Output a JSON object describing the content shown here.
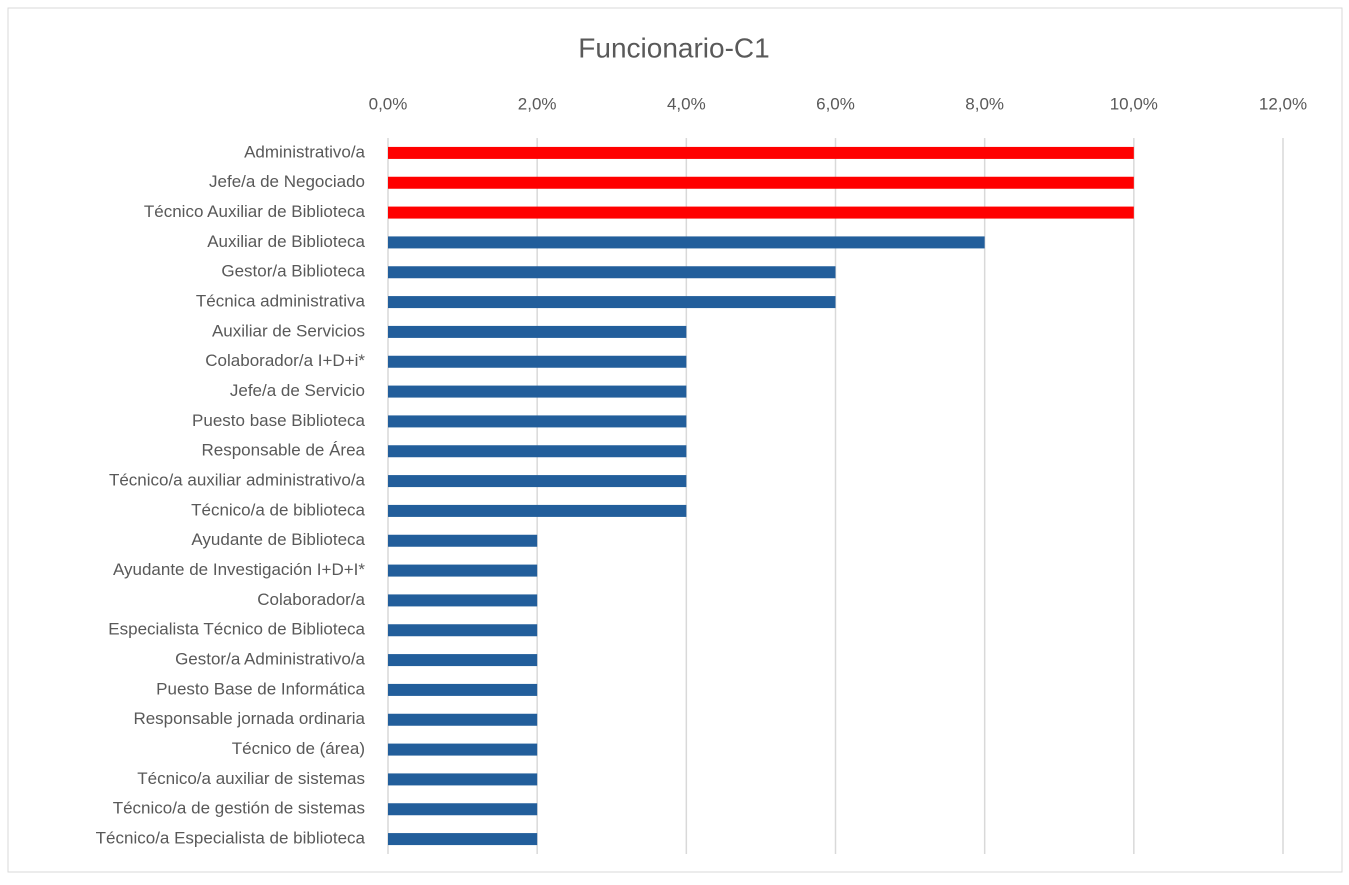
{
  "chart_data": {
    "type": "bar",
    "orientation": "horizontal",
    "title": "Funcionario-C1",
    "categories": [
      "Administrativo/a",
      "Jefe/a de Negociado",
      "Técnico Auxiliar de Biblioteca",
      "Auxiliar de Biblioteca",
      "Gestor/a Biblioteca",
      "Técnica administrativa",
      "Auxiliar de Servicios",
      "Colaborador/a I+D+i*",
      "Jefe/a de Servicio",
      "Puesto base Biblioteca",
      "Responsable de Área",
      "Técnico/a auxiliar administrativo/a",
      "Técnico/a de biblioteca",
      "Ayudante de Biblioteca",
      "Ayudante de Investigación I+D+I*",
      "Colaborador/a",
      "Especialista Técnico de Biblioteca",
      "Gestor/a Administrativo/a",
      "Puesto Base de Informática",
      "Responsable jornada ordinaria",
      "Técnico de (área)",
      "Técnico/a auxiliar de sistemas",
      "Técnico/a de gestión de sistemas",
      "Técnico/a Especialista de biblioteca"
    ],
    "values": [
      10,
      10,
      10,
      8,
      6,
      6,
      4,
      4,
      4,
      4,
      4,
      4,
      4,
      2,
      2,
      2,
      2,
      2,
      2,
      2,
      2,
      2,
      2,
      2
    ],
    "colors": [
      "#ff0000",
      "#ff0000",
      "#ff0000",
      "#225e9b",
      "#225e9b",
      "#225e9b",
      "#225e9b",
      "#225e9b",
      "#225e9b",
      "#225e9b",
      "#225e9b",
      "#225e9b",
      "#225e9b",
      "#225e9b",
      "#225e9b",
      "#225e9b",
      "#225e9b",
      "#225e9b",
      "#225e9b",
      "#225e9b",
      "#225e9b",
      "#225e9b",
      "#225e9b",
      "#225e9b"
    ],
    "xlim": [
      0,
      12
    ],
    "xticks": [
      {
        "value": 0,
        "label": "0,0%"
      },
      {
        "value": 2,
        "label": "2,0%"
      },
      {
        "value": 4,
        "label": "4,0%"
      },
      {
        "value": 6,
        "label": "6,0%"
      },
      {
        "value": 8,
        "label": "8,0%"
      },
      {
        "value": 10,
        "label": "10,0%"
      },
      {
        "value": 12,
        "label": "12,0%"
      }
    ],
    "grid": true,
    "xaxis_position": "top"
  }
}
